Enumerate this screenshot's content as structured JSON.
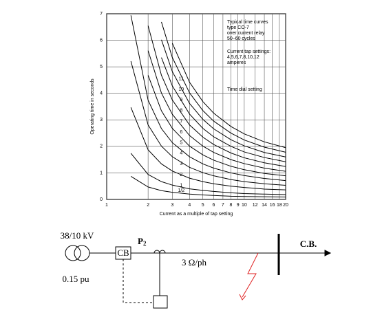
{
  "chart_data": {
    "type": "line",
    "xlabel": "Current as a multiple of tap setting",
    "ylabel": "Operating time in seconds",
    "log_x": true,
    "grid": true,
    "xlim": [
      1,
      20
    ],
    "ylim": [
      0,
      7
    ],
    "xticks": [
      1,
      2,
      3,
      4,
      5,
      6,
      7,
      8,
      9,
      10,
      12,
      14,
      16,
      18,
      20
    ],
    "yticks": [
      0,
      1,
      2,
      3,
      4,
      5,
      6,
      7
    ],
    "annotations": [
      "Typical time curves",
      "type CO-7",
      "over current relay",
      "50–60 cycles",
      "Current tap settings:",
      "4,5,6,7,8,10,12",
      "amperes",
      "Time dial setting"
    ],
    "x": [
      1.5,
      2,
      2.5,
      3,
      4,
      5,
      6,
      8,
      10,
      14,
      20
    ],
    "series": [
      {
        "name": "1/2",
        "color": "#000000",
        "values": [
          0.87,
          0.47,
          0.33,
          0.27,
          0.2,
          0.17,
          0.15,
          0.12,
          0.11,
          0.1,
          0.09
        ]
      },
      {
        "name": "1",
        "color": "#000000",
        "values": [
          1.74,
          0.94,
          0.67,
          0.54,
          0.4,
          0.34,
          0.3,
          0.25,
          0.22,
          0.2,
          0.18
        ]
      },
      {
        "name": "2",
        "color": "#000000",
        "values": [
          3.47,
          1.87,
          1.34,
          1.07,
          0.8,
          0.67,
          0.59,
          0.5,
          0.45,
          0.39,
          0.36
        ]
      },
      {
        "name": "3",
        "color": "#000000",
        "values": [
          5.21,
          2.81,
          2.01,
          1.61,
          1.21,
          1.01,
          0.89,
          0.75,
          0.67,
          0.59,
          0.53
        ]
      },
      {
        "name": "4",
        "color": "#000000",
        "values": [
          6.94,
          3.74,
          2.67,
          2.14,
          1.61,
          1.34,
          1.18,
          1.0,
          0.9,
          0.79,
          0.71
        ]
      },
      {
        "name": "5",
        "color": "#000000",
        "values": [
          null,
          4.68,
          3.34,
          2.68,
          2.01,
          1.68,
          1.48,
          1.25,
          1.12,
          0.98,
          0.89
        ]
      },
      {
        "name": "6",
        "color": "#000000",
        "values": [
          null,
          5.61,
          4.01,
          3.21,
          2.41,
          2.01,
          1.77,
          1.5,
          1.35,
          1.18,
          1.06
        ]
      },
      {
        "name": "7",
        "color": "#000000",
        "values": [
          null,
          6.55,
          4.68,
          3.75,
          2.81,
          2.35,
          2.07,
          1.75,
          1.57,
          1.38,
          1.24
        ]
      },
      {
        "name": "8",
        "color": "#000000",
        "values": [
          null,
          null,
          5.35,
          4.28,
          3.22,
          2.68,
          2.36,
          2.0,
          1.79,
          1.58,
          1.42
        ]
      },
      {
        "name": "9",
        "color": "#000000",
        "values": [
          null,
          null,
          6.02,
          4.82,
          3.62,
          3.02,
          2.66,
          2.25,
          2.02,
          1.77,
          1.6
        ]
      },
      {
        "name": "10",
        "color": "#000000",
        "values": [
          null,
          null,
          6.69,
          5.35,
          4.02,
          3.35,
          2.95,
          2.5,
          2.24,
          1.97,
          1.78
        ]
      },
      {
        "name": "11",
        "color": "#000000",
        "values": [
          null,
          null,
          null,
          5.89,
          4.42,
          3.69,
          3.25,
          2.75,
          2.47,
          2.17,
          1.95
        ]
      }
    ]
  },
  "diagram": {
    "transformer": "38/10 kV",
    "impedance": "0.15 pu",
    "relay": "P",
    "relay_sub": "2",
    "breaker": "CB",
    "line": "3 Ω/ph",
    "load_breaker": "C.B."
  }
}
